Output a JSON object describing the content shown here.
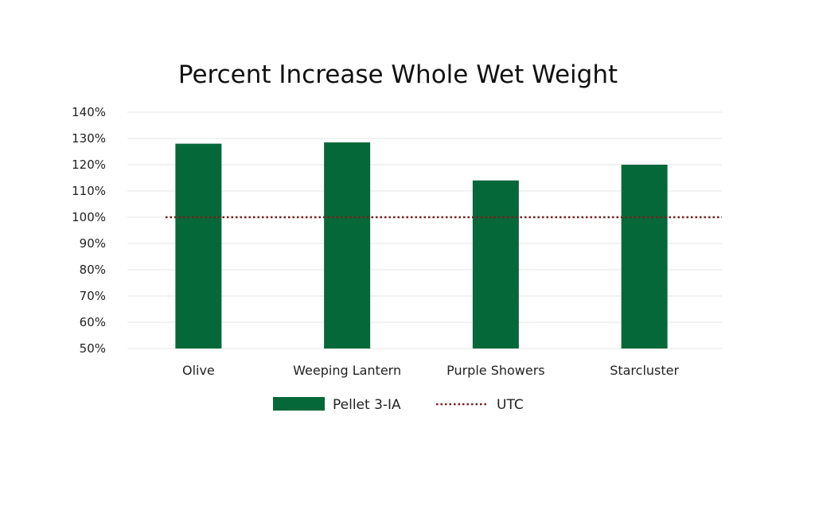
{
  "chart_data": {
    "type": "bar",
    "title": "Percent Increase Whole Wet Weight",
    "categories": [
      "Olive",
      "Weeping Lantern",
      "Purple Showers",
      "Starcluster"
    ],
    "series": [
      {
        "name": "Pellet 3-IA",
        "values": [
          128,
          128.5,
          114,
          120
        ],
        "color": "#056839"
      }
    ],
    "reference_lines": [
      {
        "name": "UTC",
        "value": 100,
        "style": "dotted",
        "color": "#7a1f1f"
      }
    ],
    "yticks": [
      "50%",
      "60%",
      "70%",
      "80%",
      "90%",
      "100%",
      "110%",
      "120%",
      "130%",
      "140%"
    ],
    "ylim": [
      50,
      140
    ],
    "grid": true,
    "legend_position": "bottom"
  }
}
